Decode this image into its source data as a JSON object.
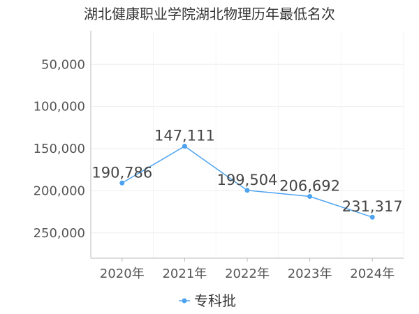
{
  "chart_data": {
    "type": "line",
    "title": "湖北健康职业学院湖北物理历年最低名次",
    "categories": [
      "2020年",
      "2021年",
      "2022年",
      "2023年",
      "2024年"
    ],
    "series": [
      {
        "name": "专科批",
        "values": [
          190786,
          147111,
          199504,
          206692,
          231317
        ],
        "labels": [
          "190,786",
          "147,111",
          "199,504",
          "206,692",
          "231,317"
        ],
        "color": "#4da3f0"
      }
    ],
    "y_ticks": [
      {
        "value": 50000,
        "label": "50,000"
      },
      {
        "value": 100000,
        "label": "100,000"
      },
      {
        "value": 150000,
        "label": "150,000"
      },
      {
        "value": 200000,
        "label": "200,000"
      },
      {
        "value": 250000,
        "label": "250,000"
      }
    ],
    "ylim": [
      10000,
      280000
    ],
    "y_inverted": true,
    "grid": true,
    "legend_position": "bottom-center"
  }
}
